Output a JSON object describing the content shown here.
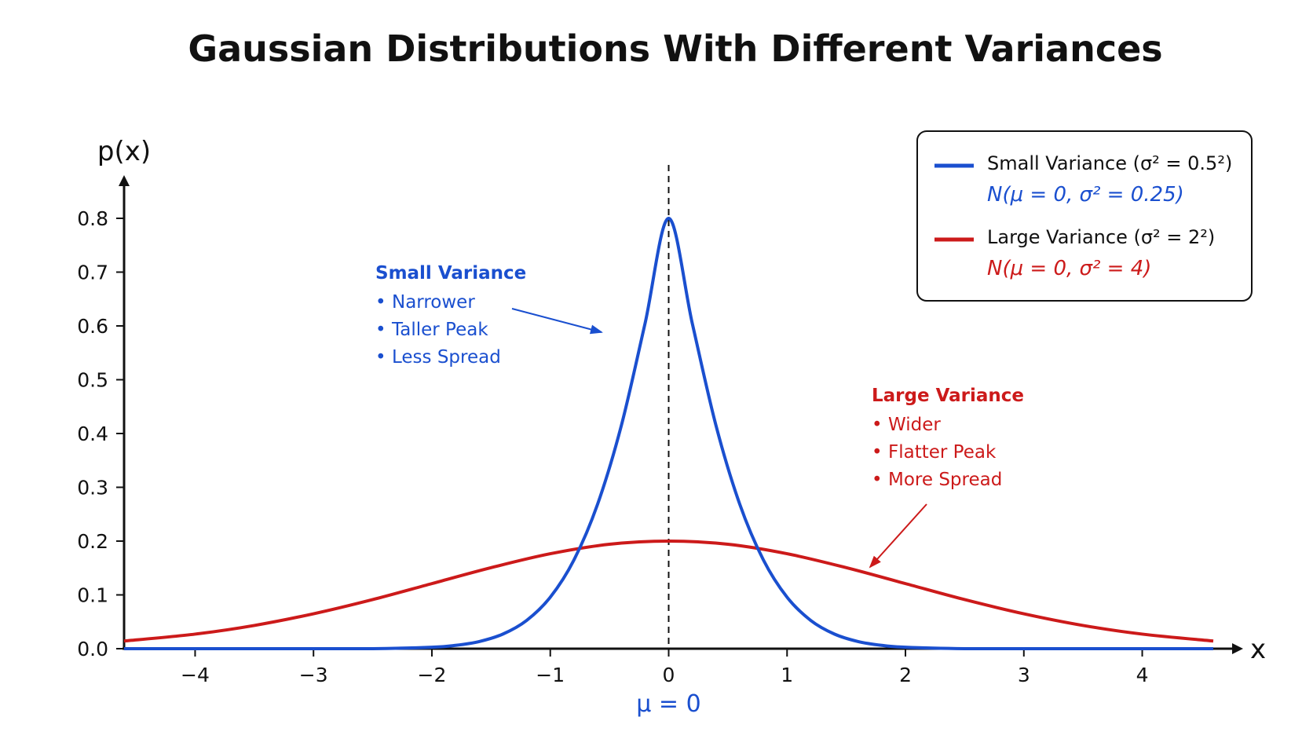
{
  "colors": {
    "small": "#1a4fcf",
    "large": "#cc1a1a",
    "axis": "#111111"
  },
  "chart_data": {
    "type": "line",
    "title": "Gaussian Distributions With Different Variances",
    "xlabel": "x",
    "ylabel": "p(x)",
    "xlim": [
      -4.6,
      4.6
    ],
    "ylim": [
      0,
      0.8
    ],
    "x_ticks": [
      "−4",
      "−3",
      "−2",
      "−1",
      "0",
      "1",
      "2",
      "3",
      "4"
    ],
    "x_tick_values": [
      -4,
      -3,
      -2,
      -1,
      0,
      1,
      2,
      3,
      4
    ],
    "y_ticks": [
      "0.0",
      "0.1",
      "0.2",
      "0.3",
      "0.4",
      "0.5",
      "0.6",
      "0.7",
      "0.8"
    ],
    "y_tick_values": [
      0,
      0.1,
      0.2,
      0.3,
      0.4,
      0.5,
      0.6,
      0.7,
      0.8
    ],
    "grid": false,
    "legend_position": "top-right",
    "mean_marker": {
      "x": 0,
      "label": "μ = 0"
    },
    "series": [
      {
        "name": "Small Variance (σ² = 0.5²)",
        "subtitle": "N(μ = 0, σ² = 0.25)",
        "color": "#1a4fcf",
        "x": [
          -4.6,
          -3.0,
          -2.5,
          -2.0,
          -1.8,
          -1.6,
          -1.4,
          -1.2,
          -1.0,
          -0.8,
          -0.6,
          -0.4,
          -0.2,
          0,
          0.2,
          0.4,
          0.6,
          0.8,
          1.0,
          1.2,
          1.4,
          1.6,
          1.8,
          2.0,
          2.5,
          3.0,
          4.6
        ],
        "y": [
          0,
          0,
          0,
          0.0027,
          0.0062,
          0.0133,
          0.0272,
          0.0525,
          0.0957,
          0.165,
          0.2688,
          0.4146,
          0.6041,
          0.8,
          0.6041,
          0.4146,
          0.2688,
          0.165,
          0.0957,
          0.0525,
          0.0272,
          0.0133,
          0.0062,
          0.0027,
          0,
          0,
          0
        ]
      },
      {
        "name": "Large Variance (σ² = 2²)",
        "subtitle": "N(μ = 0, σ² = 4)",
        "color": "#cc1a1a",
        "x": [
          -4.6,
          -4.0,
          -3.5,
          -3.0,
          -2.5,
          -2.0,
          -1.5,
          -1.0,
          -0.5,
          0,
          0.5,
          1.0,
          1.5,
          2.0,
          2.5,
          3.0,
          3.5,
          4.0,
          4.6
        ],
        "y": [
          0.0142,
          0.0271,
          0.0432,
          0.0649,
          0.0913,
          0.121,
          0.1506,
          0.1765,
          0.1941,
          0.2,
          0.1941,
          0.1765,
          0.1506,
          0.121,
          0.0913,
          0.0649,
          0.0432,
          0.0271,
          0.0142
        ]
      }
    ],
    "annotations": [
      {
        "heading": "Small Variance",
        "items": [
          "Narrower",
          "Taller Peak",
          "Less Spread"
        ],
        "color": "#1a4fcf"
      },
      {
        "heading": "Large Variance",
        "items": [
          "Wider",
          "Flatter Peak",
          "More Spread"
        ],
        "color": "#cc1a1a"
      }
    ]
  }
}
